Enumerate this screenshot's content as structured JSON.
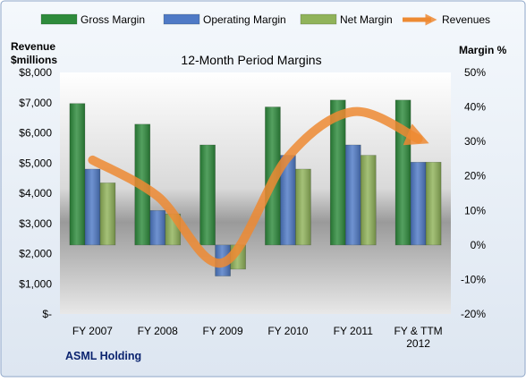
{
  "chart_data": {
    "type": "bar",
    "title": "12-Month Period Margins",
    "company": "ASML Holding",
    "left_axis": {
      "label_line1": "Revenue",
      "label_line2": "$millions",
      "range": [
        0,
        8000
      ],
      "ticks": [
        "$-",
        "$1,000",
        "$2,000",
        "$3,000",
        "$4,000",
        "$5,000",
        "$6,000",
        "$7,000",
        "$8,000"
      ],
      "tick_values": [
        0,
        1000,
        2000,
        3000,
        4000,
        5000,
        6000,
        7000,
        8000
      ]
    },
    "right_axis": {
      "label": "Margin %",
      "range": [
        -20,
        50
      ],
      "ticks": [
        "-20%",
        "-10%",
        "0%",
        "10%",
        "20%",
        "30%",
        "40%",
        "50%"
      ],
      "tick_values": [
        -20,
        -10,
        0,
        10,
        20,
        30,
        40,
        50
      ]
    },
    "categories": [
      [
        "FY 2007"
      ],
      [
        "FY 2008"
      ],
      [
        "FY 2009"
      ],
      [
        "FY 2010"
      ],
      [
        "FY 2011"
      ],
      [
        "FY & TTM",
        "2012"
      ]
    ],
    "series": [
      {
        "name": "Gross Margin",
        "type": "bar",
        "axis": "right",
        "values": [
          41,
          35,
          29,
          40,
          42,
          42
        ],
        "color": "#2e8b3c"
      },
      {
        "name": "Operating Margin",
        "type": "bar",
        "axis": "right",
        "values": [
          22,
          10,
          -9,
          26,
          29,
          24
        ],
        "color": "#4f7ac6"
      },
      {
        "name": "Net Margin",
        "type": "bar",
        "axis": "right",
        "values": [
          18,
          9,
          -7,
          22,
          26,
          24
        ],
        "color": "#90b35a"
      },
      {
        "name": "Revenues",
        "type": "line",
        "axis": "left",
        "values": [
          5100,
          3900,
          1700,
          5200,
          6700,
          5800
        ],
        "color": "#ed8a32"
      }
    ],
    "legend_position": "top",
    "grid": false
  }
}
